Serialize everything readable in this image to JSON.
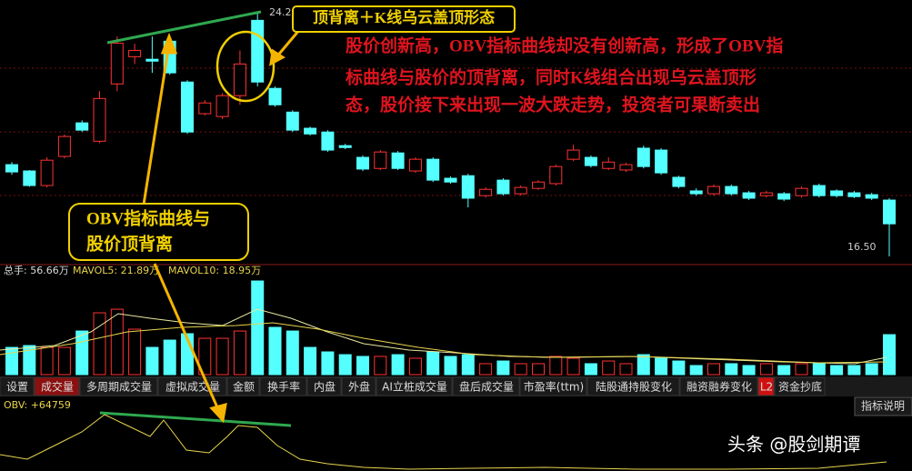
{
  "candles": {
    "open": [
      19.4,
      19.2,
      18.74,
      19.66,
      20.72,
      20.14,
      21.95,
      22.81,
      22.73,
      23.3,
      22.01,
      21.01,
      20.92,
      21.58,
      23.96,
      21.81,
      21.06,
      20.55,
      20.43,
      20.0,
      19.63,
      19.28,
      19.77,
      19.2,
      19.57,
      18.97,
      19.05,
      18.42,
      18.91,
      18.48,
      18.65,
      18.8,
      19.57,
      19.63,
      19.28,
      19.23,
      19.92,
      19.86,
      19.0,
      18.57,
      18.48,
      18.71,
      18.51,
      18.42,
      18.48,
      18.42,
      18.74,
      18.57,
      18.51,
      18.45,
      18.28
    ],
    "close": [
      19.17,
      18.74,
      19.54,
      20.29,
      20.49,
      21.49,
      23.24,
      23.01,
      22.67,
      22.3,
      20.43,
      21.35,
      21.58,
      22.58,
      22.01,
      21.29,
      20.49,
      20.37,
      19.86,
      19.94,
      19.26,
      19.8,
      19.28,
      19.57,
      18.91,
      18.85,
      18.34,
      18.62,
      18.48,
      18.68,
      18.85,
      19.34,
      19.86,
      19.37,
      19.48,
      19.4,
      19.34,
      19.14,
      18.71,
      18.48,
      18.71,
      18.48,
      18.34,
      18.51,
      18.31,
      18.65,
      18.42,
      18.42,
      18.39,
      18.34,
      17.53
    ],
    "high": [
      19.48,
      19.23,
      19.63,
      20.35,
      20.8,
      21.72,
      23.45,
      23.22,
      23.45,
      23.36,
      22.07,
      21.44,
      21.66,
      23.01,
      24.2,
      21.87,
      21.12,
      20.6,
      20.49,
      20.06,
      19.69,
      19.86,
      19.83,
      19.63,
      19.63,
      19.03,
      19.11,
      18.68,
      18.97,
      18.74,
      18.91,
      19.4,
      20.03,
      19.69,
      19.63,
      19.46,
      20.0,
      19.92,
      19.05,
      18.65,
      18.77,
      18.77,
      18.57,
      18.57,
      18.54,
      18.71,
      18.8,
      18.62,
      18.57,
      18.51,
      18.34
    ],
    "low": [
      19.08,
      18.7,
      18.68,
      19.6,
      20.43,
      20.08,
      21.72,
      22.58,
      22.3,
      22.24,
      20.37,
      20.95,
      20.84,
      21.29,
      21.87,
      21.23,
      20.43,
      20.32,
      19.8,
      19.89,
      19.2,
      19.23,
      19.23,
      19.14,
      18.85,
      18.8,
      18.05,
      18.36,
      18.42,
      18.42,
      18.6,
      18.74,
      19.51,
      19.31,
      19.23,
      19.17,
      19.28,
      19.08,
      18.65,
      18.42,
      18.42,
      18.42,
      18.28,
      18.36,
      18.25,
      18.36,
      18.36,
      18.36,
      18.34,
      18.28,
      16.5
    ]
  },
  "volume": [
    38.6,
    41.2,
    38.6,
    38.6,
    61.8,
    87.6,
    92.7,
    64.4,
    38.6,
    48.9,
    58.0,
    51.5,
    51.5,
    61.8,
    132.7,
    67.0,
    61.8,
    38.6,
    32.2,
    28.3,
    25.8,
    25.8,
    28.3,
    23.2,
    32.2,
    25.8,
    28.3,
    15.5,
    19.3,
    15.5,
    15.5,
    25.8,
    23.2,
    15.5,
    19.3,
    15.5,
    28.3,
    23.2,
    19.3,
    12.9,
    15.5,
    15.5,
    12.9,
    15.5,
    12.9,
    15.5,
    15.5,
    12.9,
    12.9,
    15.5,
    56.66
  ],
  "price_labels": {
    "high": {
      "value": 24.2,
      "label": "24.2"
    },
    "low": {
      "value": 16.5,
      "label": "16.50"
    }
  },
  "volume_header": [
    "总手: 56.66万",
    "MAVOL5: 21.89万",
    "MAVOL10: 18.95万"
  ],
  "tabs": [
    "设置",
    "成交量",
    "多周期成交量",
    "虚拟成交量",
    "金额",
    "换手率",
    "内盘",
    "外盘",
    "AI立桩成交量",
    "盘后成交量",
    "市盈率(ttm)",
    "陆股通持股变化",
    "融资融券变化",
    "L2",
    "资金抄底"
  ],
  "indicator_help": "指标说明",
  "obv_header": "OBV: +64759",
  "annotations": {
    "top_box": "顶背离＋K线乌云盖顶形态",
    "explanation": [
      "股价创新高，OBV指标曲线却没有创新高，形成了OBV指",
      "标曲线与股价的顶背离，同时K线组合出现乌云盖顶形",
      "态，股价接下来出现一波大跌走势，投资者可果断卖出"
    ],
    "obv_box": [
      "OBV指标曲线与",
      "股价顶背离"
    ]
  },
  "watermark": "头条 @股剑期谭"
}
